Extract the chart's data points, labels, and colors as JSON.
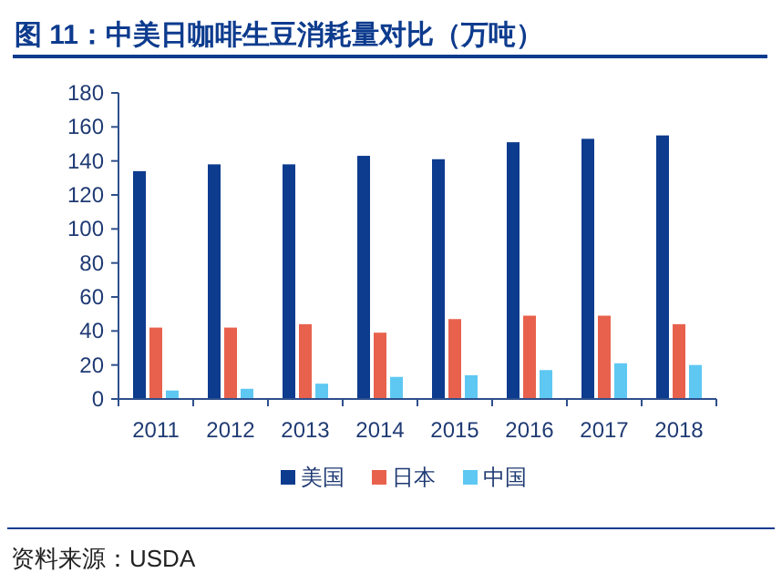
{
  "chart_data": {
    "type": "bar",
    "title": "图 11：中美日咖啡生豆消耗量对比（万吨）",
    "categories": [
      "2011",
      "2012",
      "2013",
      "2014",
      "2015",
      "2016",
      "2017",
      "2018"
    ],
    "series": [
      {
        "name": "美国",
        "color": "#0d3b8e",
        "values": [
          134,
          138,
          138,
          143,
          141,
          151,
          153,
          155
        ]
      },
      {
        "name": "日本",
        "color": "#e8614d",
        "values": [
          42,
          42,
          44,
          39,
          47,
          49,
          49,
          44
        ]
      },
      {
        "name": "中国",
        "color": "#5ec8f2",
        "values": [
          5,
          6,
          9,
          13,
          14,
          17,
          21,
          20
        ]
      }
    ],
    "ylim": [
      0,
      180
    ],
    "yticks": [
      0,
      20,
      40,
      60,
      80,
      100,
      120,
      140,
      160,
      180
    ],
    "legend": "bottom",
    "annotations": [
      "资料来源：USDA"
    ]
  }
}
